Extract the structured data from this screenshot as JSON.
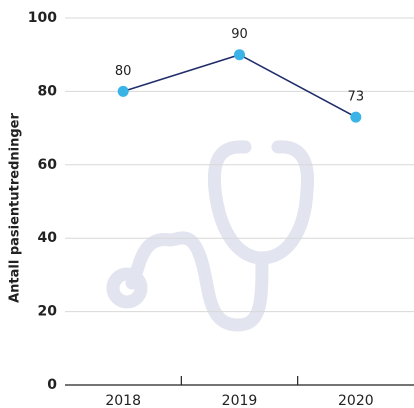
{
  "chart_data": {
    "type": "line",
    "y_label": "Antall pasientutredninger",
    "categories": [
      "2018",
      "2019",
      "2020"
    ],
    "values": [
      80,
      90,
      73
    ],
    "line_color": "#1f2d6b",
    "marker_color": "#3ab4e6",
    "ylim": [
      0,
      100
    ],
    "yticks": [
      0,
      20,
      40,
      60,
      80,
      100
    ],
    "grid": true
  }
}
